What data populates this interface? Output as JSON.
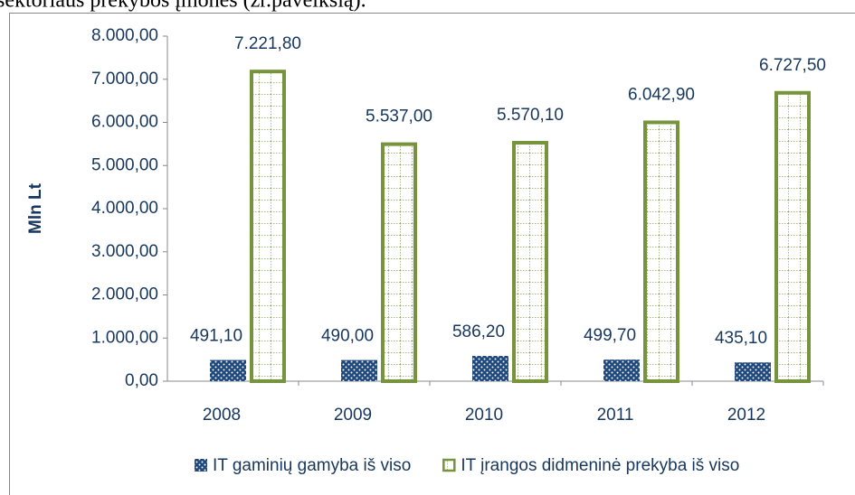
{
  "caption": "sektoriaus prekybos įmonės (žr.paveikslą).",
  "chart_data": {
    "type": "bar",
    "ylabel": "Mln Lt",
    "categories": [
      "2008",
      "2009",
      "2010",
      "2011",
      "2012"
    ],
    "series": [
      {
        "name": "IT gaminių gamyba iš viso",
        "color": "#1f497d",
        "values": [
          491.1,
          490.0,
          586.2,
          499.7,
          435.1
        ],
        "value_labels": [
          "491,10",
          "490,00",
          "586,20",
          "499,70",
          "435,10"
        ]
      },
      {
        "name": "IT įrangos didmeninė prekyba iš viso",
        "color": "#77933c",
        "values": [
          7221.8,
          5537.0,
          5570.1,
          6042.9,
          6727.5
        ],
        "value_labels": [
          "7.221,80",
          "5.537,00",
          "5.570,10",
          "6.042,90",
          "6.727,50"
        ]
      }
    ],
    "ylim": [
      0,
      8000
    ],
    "yticks": [
      {
        "value": 0,
        "label": "0,00"
      },
      {
        "value": 1000,
        "label": "1.000,00"
      },
      {
        "value": 2000,
        "label": "2.000,00"
      },
      {
        "value": 3000,
        "label": "3.000,00"
      },
      {
        "value": 4000,
        "label": "4.000,00"
      },
      {
        "value": 5000,
        "label": "5.000,00"
      },
      {
        "value": 6000,
        "label": "6.000,00"
      },
      {
        "value": 7000,
        "label": "7.000,00"
      },
      {
        "value": 8000,
        "label": "8.000,00"
      }
    ],
    "grid": false
  }
}
